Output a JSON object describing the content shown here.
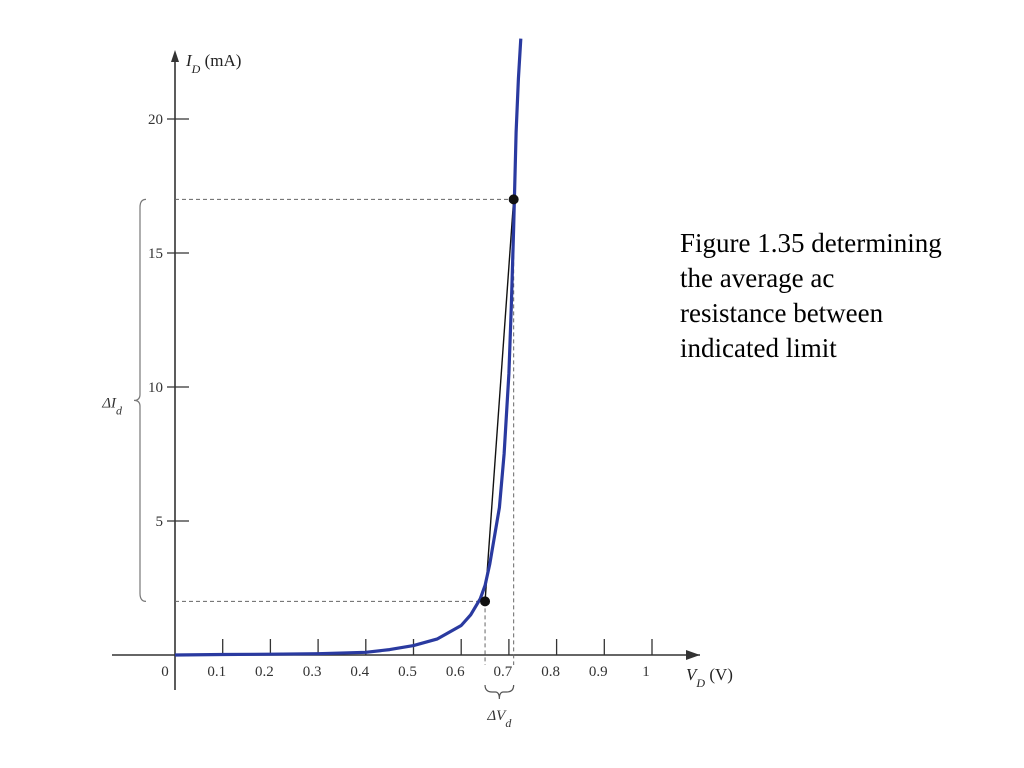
{
  "caption": "Figure 1.35 determining\nthe average ac\nresistance between\nindicated limit",
  "chart_data": {
    "type": "line",
    "xlabel": "V_D (V)",
    "ylabel": "I_D (mA)",
    "xlim": [
      0,
      1.1
    ],
    "ylim": [
      0,
      23
    ],
    "x_ticks": [
      "0",
      "0.1",
      "0.2",
      "0.3",
      "0.4",
      "0.5",
      "0.6",
      "0.7",
      "0.8",
      "0.9",
      "1"
    ],
    "x_tick_values": [
      0,
      0.1,
      0.2,
      0.3,
      0.4,
      0.5,
      0.6,
      0.7,
      0.8,
      0.9,
      1.0
    ],
    "y_ticks": [
      "5",
      "10",
      "15",
      "20"
    ],
    "y_tick_values": [
      5,
      10,
      15,
      20
    ],
    "series": [
      {
        "x": [
          0,
          0.1,
          0.2,
          0.3,
          0.4,
          0.45,
          0.5,
          0.55,
          0.6,
          0.62,
          0.64,
          0.65,
          0.66,
          0.68,
          0.69,
          0.7,
          0.705,
          0.71,
          0.715,
          0.72,
          0.725
        ],
        "y": [
          0,
          0.02,
          0.03,
          0.05,
          0.1,
          0.2,
          0.35,
          0.6,
          1.1,
          1.5,
          2.1,
          2.6,
          3.4,
          5.5,
          7.5,
          10.5,
          13,
          16,
          19.5,
          21.5,
          23
        ]
      }
    ],
    "points": [
      {
        "x": 0.65,
        "y": 2
      },
      {
        "x": 0.71,
        "y": 17
      }
    ],
    "annotations": {
      "delta_i": "ΔI_d",
      "delta_v": "ΔV_d"
    },
    "grid": false,
    "colors": {
      "curve": "#2a3aa0",
      "axis": "#333333",
      "dashed": "#666666"
    }
  }
}
